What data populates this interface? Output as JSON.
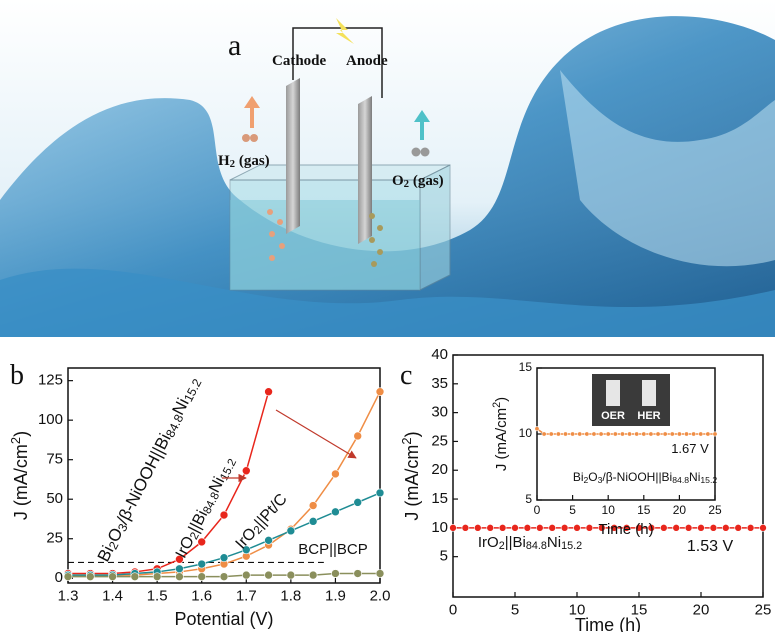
{
  "illustration": {
    "label": "a",
    "cathode": "Cathode",
    "anode": "Anode",
    "h2": "H2 (gas)",
    "o2": "O2 (gas)"
  },
  "chart_data": [
    {
      "type": "line",
      "label": "b",
      "x_label": "Potential (V)",
      "y_label": "J (mA/cm2)",
      "x": [
        1.3,
        1.35,
        1.4,
        1.45,
        1.5,
        1.55,
        1.6,
        1.65,
        1.7,
        1.75,
        1.8,
        1.85,
        1.9,
        1.95,
        2.0
      ],
      "xlim": [
        1.3,
        2.0
      ],
      "xticks": [
        1.3,
        1.4,
        1.5,
        1.6,
        1.7,
        1.8,
        1.9,
        {
          "value": 2,
          "label": "2.0"
        }
      ],
      "ylim": [
        -3,
        133
      ],
      "yticks": [
        0,
        25,
        50,
        75,
        100,
        125
      ],
      "hline": 10,
      "series": [
        {
          "name": "Bi2O3/β-NiOOH||Bi84.8Ni15.2",
          "color": "#e8261c",
          "values": [
            3,
            3,
            3,
            4,
            6,
            12,
            23,
            40,
            68,
            118,
            null,
            null,
            null,
            null,
            null
          ]
        },
        {
          "name": "IrO2||Bi84.8Ni15.2",
          "color": "#ef8d45",
          "values": [
            2,
            2,
            2,
            2,
            3,
            4,
            6,
            9,
            14,
            21,
            31,
            46,
            66,
            90,
            118
          ]
        },
        {
          "name": "IrO2||Pt/C",
          "color": "#1f8c94",
          "values": [
            2,
            2,
            2,
            3,
            4,
            6,
            9,
            13,
            18,
            24,
            30,
            36,
            42,
            48,
            54
          ]
        },
        {
          "name": "BCP||BCP",
          "color": "#8a8f5c",
          "values": [
            1,
            1,
            1,
            1,
            1,
            1,
            1,
            1,
            2,
            2,
            2,
            2,
            3,
            3,
            3
          ]
        }
      ]
    },
    {
      "type": "line",
      "label": "c",
      "x_label": "Time (h)",
      "y_label": "J (mA/cm2)",
      "x": [
        0,
        1,
        2,
        3,
        4,
        5,
        6,
        7,
        8,
        9,
        10,
        11,
        12,
        13,
        14,
        15,
        16,
        17,
        18,
        19,
        20,
        21,
        22,
        23,
        24,
        25
      ],
      "xlim": [
        0,
        25
      ],
      "xticks": [
        0,
        5,
        10,
        15,
        20,
        25
      ],
      "ylim": [
        -2,
        40
      ],
      "yticks": [
        5,
        10,
        15,
        20,
        25,
        30,
        35,
        40
      ],
      "annotations": [
        "1.53 V"
      ],
      "series": [
        {
          "name": "IrO2||Bi84.8Ni15.2",
          "color": "#e8261c",
          "values": [
            10,
            10,
            10,
            10,
            10,
            10,
            10,
            10,
            10,
            10,
            10,
            10,
            10,
            10,
            10,
            10,
            10,
            10,
            10,
            10,
            10,
            10,
            10,
            10,
            10,
            10
          ]
        }
      ],
      "inset": {
        "type": "line",
        "x_label": "Time (h)",
        "y_label": "J (mA/cm2)",
        "x": [
          0,
          1,
          2,
          3,
          4,
          5,
          6,
          7,
          8,
          9,
          10,
          11,
          12,
          13,
          14,
          15,
          16,
          17,
          18,
          19,
          20,
          21,
          22,
          23,
          24,
          25
        ],
        "xlim": [
          0,
          25
        ],
        "xticks": [
          0,
          5,
          10,
          15,
          20,
          25
        ],
        "ylim": [
          5,
          15
        ],
        "yticks": [
          5,
          10,
          15
        ],
        "annotations": [
          "1.67 V"
        ],
        "photo_labels": [
          "OER",
          "HER"
        ],
        "series": [
          {
            "name": "Bi2O3/β-NiOOH||Bi84.8Ni15.2",
            "color": "#ef8d45",
            "values": [
              10.4,
              10,
              10,
              10,
              10,
              10,
              10,
              10,
              10,
              10,
              10,
              10,
              10,
              10,
              10,
              10,
              10,
              10,
              10,
              10,
              10,
              10,
              10,
              10,
              10,
              10
            ]
          }
        ]
      }
    }
  ]
}
